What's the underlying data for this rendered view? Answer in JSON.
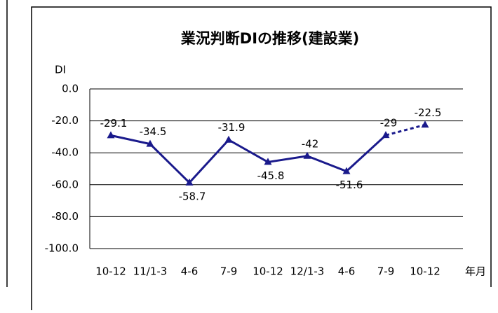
{
  "chart_data": {
    "type": "line",
    "title": "業況判断DIの推移(建設業)",
    "y_label": "DI",
    "x_label": "年月",
    "categories": [
      "10-12",
      "11/1-3",
      "4-6",
      "7-9",
      "10-12",
      "12/1-3",
      "4-6",
      "7-9",
      "10-12"
    ],
    "series": [
      {
        "name": "業況判断DI",
        "color": "#1a1a8c",
        "values": [
          -29.1,
          -34.5,
          -58.7,
          -31.9,
          -45.8,
          -42,
          -51.6,
          -29,
          -22.5
        ]
      }
    ],
    "ylim": [
      -100,
      0
    ],
    "yticks": [
      {
        "value": 0,
        "label": "0.0"
      },
      {
        "value": -20,
        "label": "-20.0"
      },
      {
        "value": -40,
        "label": "-40.0"
      },
      {
        "value": -60,
        "label": "-60.0"
      },
      {
        "value": -80,
        "label": "-80.0"
      },
      {
        "value": -100,
        "label": "-100.0"
      }
    ],
    "grid": true,
    "dashed_last_segment": true,
    "marker": "triangle"
  }
}
